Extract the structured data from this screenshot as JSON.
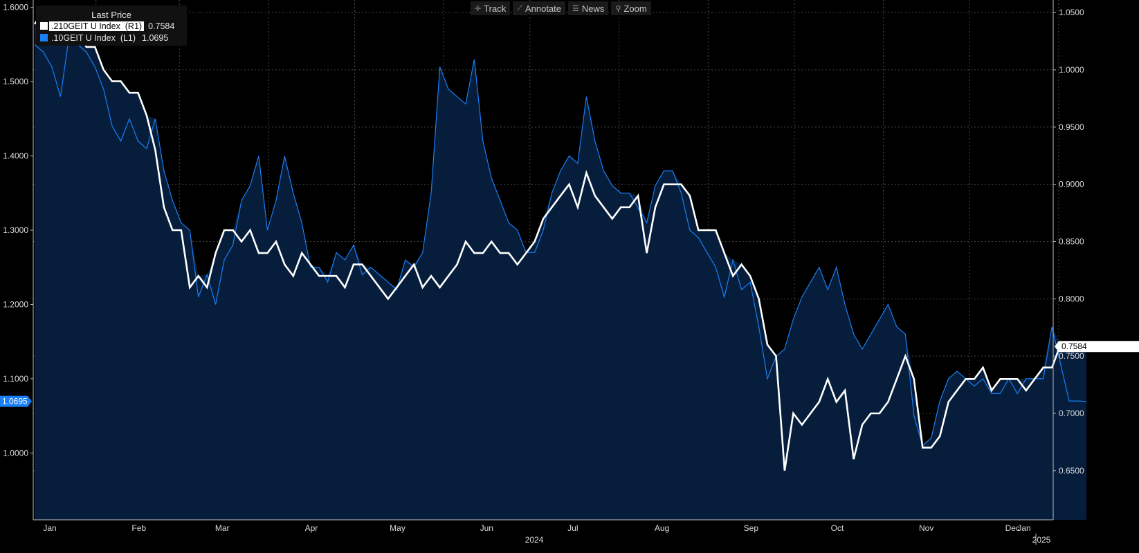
{
  "toolbar": {
    "track": "Track",
    "annotate": "Annotate",
    "news": "News",
    "zoom": "Zoom"
  },
  "legend": {
    "title": "Last Price",
    "items": [
      {
        "name": ".210GEIT U Index  (R1)",
        "value": "0.7584",
        "color": "#ffffff"
      },
      {
        "name": ".10GEIT U Index  (L1)",
        "value": "1.0695",
        "color": "#1a7ff5"
      }
    ]
  },
  "chart_data": {
    "type": "line",
    "left_axis": {
      "ticks": [
        "1.0000",
        "1.1000",
        "1.2000",
        "1.3000",
        "1.4000",
        "1.5000",
        "1.6000"
      ],
      "range": [
        0.91,
        1.61
      ],
      "current_label": "1.0695"
    },
    "right_axis": {
      "ticks": [
        "0.6500",
        "0.7000",
        "0.7500",
        "0.8000",
        "0.8500",
        "0.9000",
        "0.9500",
        "1.0000",
        "1.0500"
      ],
      "range": [
        0.607,
        1.061
      ],
      "current_label": "0.7584"
    },
    "x_axis": {
      "months": [
        "Jan",
        "Feb",
        "Mar",
        "Apr",
        "May",
        "Jun",
        "Jul",
        "Aug",
        "Sep",
        "Oct",
        "Nov",
        "Dec",
        "Jan"
      ],
      "years": [
        "2024",
        "2025"
      ]
    },
    "x_domain": [
      0,
      366
    ],
    "grid": true,
    "series": [
      {
        "name": ".10GEIT U Index",
        "axis": "left",
        "color": "#1a7ff5",
        "x": [
          0,
          3,
          6,
          9,
          12,
          15,
          18,
          21,
          24,
          27,
          30,
          33,
          36,
          39,
          42,
          45,
          48,
          51,
          54,
          57,
          60,
          63,
          66,
          69,
          72,
          75,
          78,
          81,
          84,
          87,
          90,
          93,
          96,
          99,
          102,
          105,
          108,
          111,
          114,
          117,
          120,
          123,
          126,
          129,
          132,
          135,
          138,
          141,
          144,
          147,
          150,
          153,
          156,
          159,
          162,
          165,
          168,
          171,
          174,
          177,
          180,
          183,
          186,
          189,
          192,
          195,
          198,
          201,
          204,
          207,
          210,
          213,
          216,
          219,
          222,
          225,
          228,
          231,
          234,
          237,
          240,
          243,
          246,
          249,
          252,
          255,
          258,
          261,
          264,
          267,
          270,
          273,
          276,
          279,
          282,
          285,
          288,
          291,
          294,
          297,
          300,
          303,
          306,
          309,
          312,
          315,
          318,
          321,
          324,
          327,
          330,
          333,
          336,
          339,
          342,
          345,
          348,
          351,
          354,
          357,
          360,
          363,
          366
        ],
        "y": [
          1.55,
          1.54,
          1.52,
          1.48,
          1.56,
          1.55,
          1.54,
          1.52,
          1.49,
          1.44,
          1.42,
          1.45,
          1.42,
          1.41,
          1.45,
          1.38,
          1.34,
          1.31,
          1.3,
          1.21,
          1.24,
          1.2,
          1.26,
          1.28,
          1.34,
          1.36,
          1.4,
          1.3,
          1.34,
          1.4,
          1.35,
          1.31,
          1.25,
          1.25,
          1.23,
          1.27,
          1.26,
          1.28,
          1.24,
          1.25,
          1.24,
          1.23,
          1.22,
          1.26,
          1.25,
          1.27,
          1.35,
          1.52,
          1.49,
          1.48,
          1.47,
          1.53,
          1.42,
          1.37,
          1.34,
          1.31,
          1.3,
          1.27,
          1.27,
          1.3,
          1.35,
          1.38,
          1.4,
          1.39,
          1.48,
          1.42,
          1.38,
          1.36,
          1.35,
          1.35,
          1.33,
          1.31,
          1.36,
          1.38,
          1.38,
          1.35,
          1.3,
          1.29,
          1.27,
          1.25,
          1.21,
          1.26,
          1.22,
          1.23,
          1.17,
          1.1,
          1.13,
          1.14,
          1.18,
          1.21,
          1.23,
          1.25,
          1.22,
          1.25,
          1.2,
          1.16,
          1.14,
          1.16,
          1.18,
          1.2,
          1.17,
          1.16,
          1.05,
          1.01,
          1.02,
          1.07,
          1.1,
          1.11,
          1.1,
          1.09,
          1.1,
          1.08,
          1.08,
          1.1,
          1.08,
          1.1,
          1.1,
          1.1,
          1.17,
          1.12,
          1.07,
          1.07,
          1.0695
        ]
      },
      {
        "name": ".210GEIT U Index",
        "axis": "right",
        "color": "#ffffff",
        "x": [
          0,
          3,
          6,
          9,
          12,
          15,
          18,
          21,
          24,
          27,
          30,
          33,
          36,
          39,
          42,
          45,
          48,
          51,
          54,
          57,
          60,
          63,
          66,
          69,
          72,
          75,
          78,
          81,
          84,
          87,
          90,
          93,
          96,
          99,
          102,
          105,
          108,
          111,
          114,
          117,
          120,
          123,
          126,
          129,
          132,
          135,
          138,
          141,
          144,
          147,
          150,
          153,
          156,
          159,
          162,
          165,
          168,
          171,
          174,
          177,
          180,
          183,
          186,
          189,
          192,
          195,
          198,
          201,
          204,
          207,
          210,
          213,
          216,
          219,
          222,
          225,
          228,
          231,
          234,
          237,
          240,
          243,
          246,
          249,
          252,
          255,
          258,
          261,
          264,
          267,
          270,
          273,
          276,
          279,
          282,
          285,
          288,
          291,
          294,
          297,
          300,
          303,
          306,
          309,
          312,
          315,
          318,
          321,
          324,
          327,
          330,
          333,
          336,
          339,
          342,
          345,
          348,
          351,
          354,
          357,
          360,
          363,
          366
        ],
        "y": [
          1.04,
          1.05,
          1.04,
          1.05,
          1.05,
          1.04,
          1.02,
          1.02,
          1.0,
          0.99,
          0.99,
          0.98,
          0.98,
          0.96,
          0.93,
          0.88,
          0.86,
          0.86,
          0.81,
          0.82,
          0.81,
          0.84,
          0.86,
          0.86,
          0.85,
          0.86,
          0.84,
          0.84,
          0.85,
          0.83,
          0.82,
          0.84,
          0.83,
          0.82,
          0.82,
          0.82,
          0.81,
          0.83,
          0.83,
          0.82,
          0.81,
          0.8,
          0.81,
          0.82,
          0.83,
          0.81,
          0.82,
          0.81,
          0.82,
          0.83,
          0.85,
          0.84,
          0.84,
          0.85,
          0.84,
          0.84,
          0.83,
          0.84,
          0.85,
          0.87,
          0.88,
          0.89,
          0.9,
          0.88,
          0.91,
          0.89,
          0.88,
          0.87,
          0.88,
          0.88,
          0.89,
          0.84,
          0.88,
          0.9,
          0.9,
          0.9,
          0.89,
          0.86,
          0.86,
          0.86,
          0.84,
          0.82,
          0.83,
          0.82,
          0.8,
          0.76,
          0.75,
          0.65,
          0.7,
          0.69,
          0.7,
          0.71,
          0.73,
          0.71,
          0.72,
          0.66,
          0.69,
          0.7,
          0.7,
          0.71,
          0.73,
          0.75,
          0.73,
          0.67,
          0.67,
          0.68,
          0.71,
          0.72,
          0.73,
          0.73,
          0.74,
          0.72,
          0.73,
          0.73,
          0.73,
          0.72,
          0.73,
          0.74,
          0.74,
          0.76,
          0.76,
          0.76,
          0.7584
        ]
      }
    ]
  }
}
